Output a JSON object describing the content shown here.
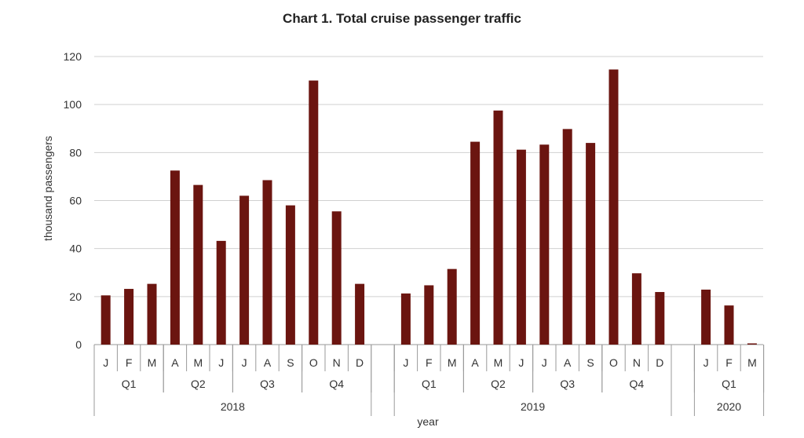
{
  "chart_data": {
    "type": "bar",
    "title": "Chart 1. Total cruise passenger traffic",
    "xlabel": "year",
    "ylabel": "thousand passengers",
    "ylim": [
      0,
      120
    ],
    "yticks": [
      0,
      20,
      40,
      60,
      80,
      100,
      120
    ],
    "grid": true,
    "color": "#6b1510",
    "years": [
      {
        "label": "2018",
        "quarters": [
          {
            "label": "Q1",
            "months": [
              "J",
              "F",
              "M"
            ],
            "values": [
              20.5,
              23.2,
              25.3
            ]
          },
          {
            "label": "Q2",
            "months": [
              "A",
              "M",
              "J"
            ],
            "values": [
              72.5,
              66.5,
              43.2
            ]
          },
          {
            "label": "Q3",
            "months": [
              "J",
              "A",
              "S"
            ],
            "values": [
              62.0,
              68.5,
              58.0
            ]
          },
          {
            "label": "Q4",
            "months": [
              "O",
              "N",
              "D"
            ],
            "values": [
              110.0,
              55.5,
              25.3
            ]
          }
        ]
      },
      {
        "label": "2019",
        "quarters": [
          {
            "label": "Q1",
            "months": [
              "J",
              "F",
              "M"
            ],
            "values": [
              21.3,
              24.7,
              31.5
            ]
          },
          {
            "label": "Q2",
            "months": [
              "A",
              "M",
              "J"
            ],
            "values": [
              84.5,
              97.5,
              81.2
            ]
          },
          {
            "label": "Q3",
            "months": [
              "J",
              "A",
              "S"
            ],
            "values": [
              83.3,
              89.8,
              84.0
            ]
          },
          {
            "label": "Q4",
            "months": [
              "O",
              "N",
              "D"
            ],
            "values": [
              114.6,
              29.7,
              21.9
            ]
          }
        ]
      },
      {
        "label": "2020",
        "quarters": [
          {
            "label": "Q1",
            "months": [
              "J",
              "F",
              "M"
            ],
            "values": [
              22.9,
              16.3,
              0.5
            ]
          }
        ]
      }
    ]
  }
}
